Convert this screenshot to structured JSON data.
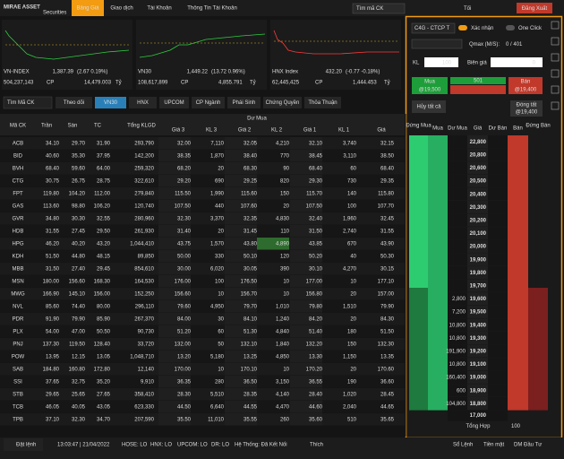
{
  "header": {
    "brand": "MIRAE ASSET",
    "brand_sub": "Securities",
    "nav": [
      "Bảng Giá",
      "Giao dịch",
      "Tài Khoản",
      "Thông Tin Tài Khoản"
    ],
    "search": "Tìm mã CK",
    "theme": "Tối",
    "logout": "Đăng Xuất"
  },
  "indices": [
    {
      "name": "VN-INDEX",
      "value": "1,387.39",
      "change": "(2.67 0.19%)",
      "volume": "504,237,143",
      "volume_unit": "CP",
      "turnover": "14,479.003",
      "turnover_unit": "Tỷ",
      "color": "#2ecc40"
    },
    {
      "name": "VN30",
      "value": "1,449.22",
      "change": "(13.72 0.96%)",
      "volume": "108,617,899",
      "volume_unit": "CP",
      "turnover": "4,855.791",
      "turnover_unit": "Tỷ",
      "color": "#2ecc40"
    },
    {
      "name": "HNX Index",
      "value": "432.20",
      "change": "(-0.77 -0.18%)",
      "volume": "62,445,425",
      "volume_unit": "CP",
      "turnover": "1,444.453",
      "turnover_unit": "Tỷ",
      "color": "#ff3b3b"
    }
  ],
  "toolbar": {
    "search": "Tìm Mã CK",
    "tabs": [
      "Theo dõi",
      "VN30",
      "HNX",
      "UPCOM",
      "CP Ngành",
      "Phái Sinh",
      "Chứng Quyền",
      "Thỏa Thuận"
    ],
    "active": 1
  },
  "table": {
    "group": "Dư Mua",
    "columns": [
      "Mã CK",
      "Trần",
      "Sàn",
      "TC",
      "Tổng KLGD",
      "Giá 3",
      "KL 3",
      "Giá 2",
      "KL 2",
      "Giá 1",
      "KL 1",
      "Giá"
    ],
    "rows": [
      {
        "color": "#2ecc40",
        "cells": [
          "ACB",
          "34.10",
          "29.70",
          "31.90",
          "293,790",
          "32.00",
          "7,110",
          "32.05",
          "4,210",
          "32.10",
          "3,740",
          "32.15"
        ]
      },
      {
        "color": "#2ecc40",
        "cells": [
          "BID",
          "40.60",
          "35.30",
          "37.95",
          "142,200",
          "38.35",
          "1,870",
          "38.40",
          "770",
          "38.45",
          "3,110",
          "38.50"
        ]
      },
      {
        "color": "#e040fb",
        "cells": [
          "BVH",
          "68.40",
          "59.60",
          "64.00",
          "259,320",
          "68.20",
          "20",
          "68.30",
          "90",
          "68.40",
          "60",
          "68.40"
        ]
      },
      {
        "color": "#2ecc40",
        "cells": [
          "CTG",
          "30.75",
          "26.75",
          "28.75",
          "322,610",
          "29.20",
          "690",
          "29.25",
          "820",
          "29.30",
          "730",
          "29.35"
        ]
      },
      {
        "color": "#2ecc40",
        "cells": [
          "FPT",
          "119.80",
          "104.20",
          "112.00",
          "279,840",
          "115.50",
          "1,990",
          "115.60",
          "150",
          "115.70",
          "140",
          "115.80"
        ]
      },
      {
        "color": "#2ecc40",
        "cells": [
          "GAS",
          "113.60",
          "98.80",
          "106.20",
          "120,740",
          "107.50",
          "440",
          "107.60",
          "20",
          "107.50",
          "100",
          "107.70"
        ]
      },
      {
        "color": "#ff3b3b",
        "cells": [
          "GVR",
          "34.80",
          "30.30",
          "32.55",
          "280,960",
          "32.30",
          "3,370",
          "32.35",
          "4,830",
          "32.40",
          "1,960",
          "32.45"
        ]
      },
      {
        "color": "#2ecc40",
        "cells": [
          "HDB",
          "31.55",
          "27.45",
          "29.50",
          "261,930",
          "31.40",
          "20",
          "31.45",
          "110",
          "31.50",
          "2,740",
          "31.55"
        ]
      },
      {
        "color": "#2ecc40",
        "cells": [
          "HPG",
          "46.20",
          "40.20",
          "43.20",
          "1,044,410",
          "43.75",
          "1,570",
          "43.80",
          "4,890",
          "43.85",
          "670",
          "43.90"
        ]
      },
      {
        "color": "#2ecc40",
        "cells": [
          "KDH",
          "51.50",
          "44.80",
          "48.15",
          "89,850",
          "50.00",
          "330",
          "50.10",
          "120",
          "50.20",
          "40",
          "50.30"
        ]
      },
      {
        "color": "#2ecc40",
        "cells": [
          "MBB",
          "31.50",
          "27.40",
          "29.45",
          "854,610",
          "30.00",
          "6,020",
          "30.05",
          "390",
          "30.10",
          "4,270",
          "30.15"
        ]
      },
      {
        "color": "#2ecc40",
        "cells": [
          "MSN",
          "180.00",
          "156.60",
          "168.30",
          "164,530",
          "176.00",
          "100",
          "176.50",
          "10",
          "177.00",
          "10",
          "177.10"
        ]
      },
      {
        "color": "#2ecc40",
        "cells": [
          "MWG",
          "166.90",
          "145.10",
          "156.00",
          "152,250",
          "156.60",
          "10",
          "156.70",
          "10",
          "156.80",
          "20",
          "157.00"
        ]
      },
      {
        "color": "#ff3b3b",
        "cells": [
          "NVL",
          "85.60",
          "74.40",
          "80.00",
          "296,110",
          "79.60",
          "4,950",
          "79.70",
          "1,010",
          "79.80",
          "1,510",
          "79.90"
        ]
      },
      {
        "color": "#ff3b3b",
        "cells": [
          "PDR",
          "91.90",
          "79.90",
          "85.90",
          "267,370",
          "84.00",
          "30",
          "84.10",
          "1,240",
          "84.20",
          "20",
          "84.30"
        ]
      },
      {
        "color": "#2ecc40",
        "cells": [
          "PLX",
          "54.00",
          "47.00",
          "50.50",
          "90,730",
          "51.20",
          "60",
          "51.30",
          "4,840",
          "51.40",
          "180",
          "51.50"
        ]
      },
      {
        "color": "#2ecc40",
        "cells": [
          "PNJ",
          "137.30",
          "119.50",
          "128.40",
          "33,720",
          "132.00",
          "50",
          "132.10",
          "1,840",
          "132.20",
          "150",
          "132.30"
        ]
      },
      {
        "color": "#2ecc40",
        "cells": [
          "POW",
          "13.95",
          "12.15",
          "13.05",
          "1,048,710",
          "13.20",
          "5,180",
          "13.25",
          "4,850",
          "13.30",
          "1,150",
          "13.35"
        ]
      },
      {
        "color": "#ff3b3b",
        "cells": [
          "SAB",
          "184.80",
          "160.80",
          "172.80",
          "12,140",
          "170.00",
          "10",
          "170.10",
          "10",
          "170.20",
          "20",
          "170.60"
        ]
      },
      {
        "color": "#2ecc40",
        "cells": [
          "SSI",
          "37.65",
          "32.75",
          "35.20",
          "9,910",
          "36.35",
          "280",
          "36.50",
          "3,150",
          "36.55",
          "190",
          "36.60"
        ]
      },
      {
        "color": "#2ecc40",
        "cells": [
          "STB",
          "29.65",
          "25.65",
          "27.65",
          "358,410",
          "28.30",
          "5,510",
          "28.35",
          "4,140",
          "28.40",
          "1,020",
          "28.45"
        ]
      },
      {
        "color": "#2ecc40",
        "cells": [
          "TCB",
          "46.05",
          "40.05",
          "43.05",
          "623,330",
          "44.50",
          "6,640",
          "44.55",
          "4,470",
          "44.60",
          "2,040",
          "44.65"
        ]
      },
      {
        "color": "#2ecc40",
        "cells": [
          "TPB",
          "37.10",
          "32.30",
          "34.70",
          "207,590",
          "35.50",
          "11,010",
          "35.55",
          "260",
          "35.60",
          "510",
          "35.65"
        ]
      }
    ]
  },
  "order_panel": {
    "symbol": "C4G - CTCP T",
    "confirm": "Xác nhận",
    "one_click": "One Click",
    "qmax_label": "Qmax (M/S):",
    "qmax": "0 / 401",
    "qty_label": "KL",
    "qty": "100",
    "band_label": "Biên giá",
    "band": "0",
    "buy": "Mua",
    "buy_price": "@19,500",
    "net": "501",
    "sell": "Bán",
    "sell_price": "@19,400",
    "cancel_all": "Hủy tất cả",
    "close_all": "Đóng tất",
    "close_price": "@19,400",
    "columns": [
      "Đứng Mua",
      "Mua",
      "Dư Mua",
      "Giá",
      "Dư Bán",
      "Bán",
      "Đứng Bán"
    ],
    "ladder": [
      {
        "price": "22,800",
        "bid": null,
        "color": "#e040fb"
      },
      {
        "price": "20,800",
        "bid": null,
        "color": "#2ecc40"
      },
      {
        "price": "20,600",
        "bid": null,
        "color": "#2ecc40"
      },
      {
        "price": "20,500",
        "bid": null,
        "color": "#2ecc40"
      },
      {
        "price": "20,400",
        "bid": null,
        "color": "#2ecc40"
      },
      {
        "price": "20,300",
        "bid": null,
        "color": "#2ecc40"
      },
      {
        "price": "20,200",
        "bid": null,
        "color": "#2ecc40"
      },
      {
        "price": "20,100",
        "bid": null,
        "color": "#2ecc40"
      },
      {
        "price": "20,000",
        "bid": null,
        "color": "#2ecc40"
      },
      {
        "price": "19,900",
        "bid": null,
        "color": "#ffd21f"
      },
      {
        "price": "19,800",
        "bid": null,
        "color": "#ff3b3b"
      },
      {
        "price": "19,700",
        "bid": null,
        "color": "#ff3b3b"
      },
      {
        "price": "19,600",
        "bid": "2,800",
        "color": "#ff3b3b"
      },
      {
        "price": "19,500",
        "bid": "7,200",
        "color": "#ff3b3b"
      },
      {
        "price": "19,400",
        "bid": "10,800",
        "color": "#ff3b3b"
      },
      {
        "price": "19,300",
        "bid": "10,800",
        "color": "#ff3b3b"
      },
      {
        "price": "19,200",
        "bid": "191,900",
        "color": "#ff3b3b"
      },
      {
        "price": "19,100",
        "bid": "10,800",
        "color": "#ff3b3b"
      },
      {
        "price": "19,000",
        "bid": "160,400",
        "color": "#ff3b3b"
      },
      {
        "price": "18,900",
        "bid": "600",
        "color": "#ff3b3b"
      },
      {
        "price": "18,800",
        "bid": "104,800",
        "color": "#ff3b3b"
      }
    ],
    "floor": "17,000",
    "total_label": "Tổng Hợp",
    "total": "100"
  },
  "footer": {
    "order": "Đặt lệnh",
    "time": "13:03:47 | 21/04/2022",
    "status": [
      "HOSE: LO",
      "HNX: LO",
      "UPCOM: LO",
      "DR: LO"
    ],
    "system": "Hệ Thống: Đã Kết Nối",
    "like": "Thích",
    "links": [
      "Sổ Lệnh",
      "Tiền mặt",
      "DM Đầu Tư"
    ]
  }
}
